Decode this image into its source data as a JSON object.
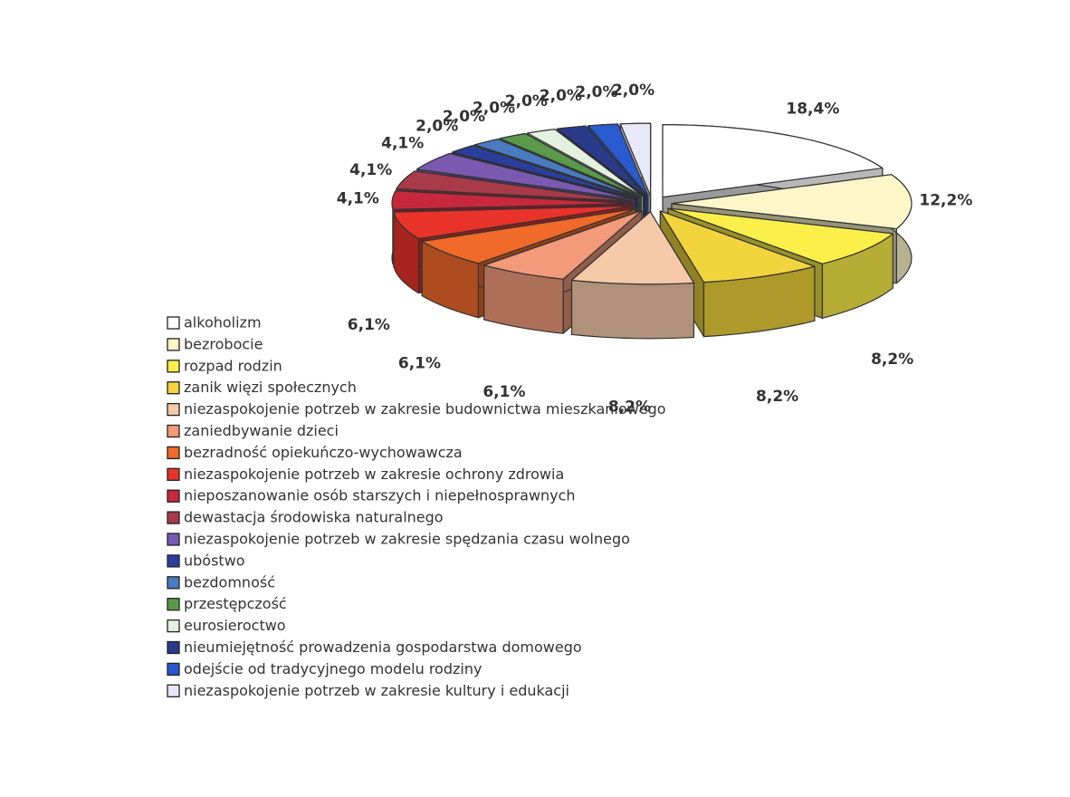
{
  "chart_data": {
    "type": "pie3d",
    "categories": [
      "alkoholizm",
      "bezrobocie",
      "rozpad rodzin",
      "zanik więzi społecznych",
      "niezaspokojenie potrzeb w zakresie budownictwa mieszkaniowego",
      "zaniedbywanie dzieci",
      "bezradność opiekuńczo-wychowawcza",
      "niezaspokojenie potrzeb w zakresie ochrony zdrowia",
      "nieposzanowanie osób starszych i niepełnosprawnych",
      "dewastacja środowiska naturalnego",
      "niezaspokojenie potrzeb w zakresie spędzania czasu wolnego",
      "ubóstwo",
      "bezdomność",
      "przestępczość",
      "eurosieroctwo",
      "nieumiejętność prowadzenia gospodarstwa domowego",
      "odejście od tradycyjnego modelu rodziny",
      "niezaspokojenie potrzeb w zakresie kultury i edukacji"
    ],
    "values": [
      18.4,
      12.2,
      8.2,
      8.2,
      8.2,
      6.1,
      6.1,
      6.1,
      4.1,
      4.1,
      4.1,
      2.0,
      2.0,
      2.0,
      2.0,
      2.0,
      2.0,
      2.0
    ],
    "value_labels": [
      "18,4%",
      "12,2%",
      "8,2%",
      "8,2%",
      "8,2%",
      "6,1%",
      "6,1%",
      "6,1%",
      "4,1%",
      "4,1%",
      "4,1%",
      "2,0%",
      "2,0%",
      "2,0%",
      "2,0%",
      "2,0%",
      "2,0%",
      "2,0%"
    ],
    "colors": [
      "#ffffff",
      "#fdf6c8",
      "#fbf04a",
      "#f2d53c",
      "#f6c9a8",
      "#f29a7a",
      "#f06a2a",
      "#e8322a",
      "#c8283c",
      "#a83a4a",
      "#7a5ab0",
      "#2c3e9c",
      "#4a7ac0",
      "#5a9a4a",
      "#e4f0e0",
      "#2a3a8a",
      "#2a5ad0",
      "#e8e8f8"
    ],
    "legend": "bottom-left"
  }
}
